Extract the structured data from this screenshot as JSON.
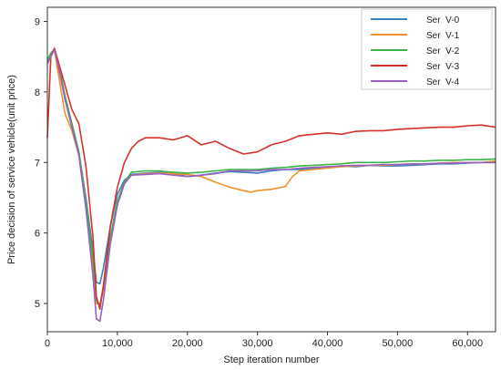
{
  "chart_data": {
    "type": "line",
    "title": "",
    "xlabel": "Step iteration number",
    "ylabel": "Price decision of service vehicle(unit price)",
    "xlim": [
      0,
      64000
    ],
    "ylim": [
      4.6,
      9.2
    ],
    "xticks": [
      0,
      10000,
      20000,
      30000,
      40000,
      50000,
      60000
    ],
    "xtick_labels": [
      "0",
      "10,000",
      "20,000",
      "30,000",
      "40,000",
      "50,000",
      "60,000"
    ],
    "yticks": [
      5,
      6,
      7,
      8,
      9
    ],
    "ytick_labels": [
      "5",
      "6",
      "7",
      "8",
      "9"
    ],
    "grid": false,
    "legend_position": "top-right",
    "series": [
      {
        "name": "Ser  V-0",
        "color": "#3a7fbf",
        "x": [
          0,
          500,
          1000,
          1500,
          2500,
          3500,
          4500,
          5500,
          6500,
          7000,
          7500,
          8000,
          9000,
          10000,
          11000,
          12000,
          14000,
          16000,
          18000,
          20000,
          22000,
          24000,
          26000,
          28000,
          30000,
          32000,
          34000,
          36000,
          38000,
          40000,
          42000,
          44000,
          46000,
          48000,
          50000,
          52000,
          54000,
          56000,
          58000,
          60000,
          62000,
          64000
        ],
        "y": [
          8.45,
          8.5,
          8.6,
          8.4,
          7.95,
          7.55,
          7.15,
          6.5,
          5.75,
          5.3,
          5.28,
          5.5,
          6.1,
          6.55,
          6.75,
          6.83,
          6.85,
          6.86,
          6.84,
          6.8,
          6.82,
          6.85,
          6.87,
          6.86,
          6.85,
          6.88,
          6.9,
          6.9,
          6.92,
          6.93,
          6.95,
          6.94,
          6.96,
          6.95,
          6.95,
          6.96,
          6.97,
          6.98,
          6.98,
          6.99,
          7.0,
          7.0
        ]
      },
      {
        "name": "Ser  V-1",
        "color": "#f0932a",
        "x": [
          0,
          500,
          1000,
          1500,
          2500,
          3500,
          4500,
          5500,
          6500,
          7000,
          7500,
          8000,
          9000,
          10000,
          11000,
          12000,
          14000,
          16000,
          18000,
          20000,
          22000,
          24000,
          26000,
          28000,
          29000,
          30000,
          32000,
          34000,
          35000,
          36000,
          38000,
          40000,
          42000,
          44000,
          46000,
          48000,
          50000,
          52000,
          54000,
          56000,
          58000,
          60000,
          62000,
          64000
        ],
        "y": [
          8.45,
          8.55,
          8.6,
          8.3,
          7.7,
          7.45,
          7.1,
          6.4,
          5.5,
          5.0,
          4.98,
          5.2,
          5.9,
          6.4,
          6.7,
          6.82,
          6.84,
          6.85,
          6.84,
          6.83,
          6.8,
          6.72,
          6.65,
          6.6,
          6.58,
          6.6,
          6.62,
          6.66,
          6.8,
          6.88,
          6.9,
          6.92,
          6.94,
          6.95,
          6.96,
          6.96,
          6.97,
          6.98,
          6.98,
          6.99,
          7.0,
          7.0,
          7.0,
          7.02
        ]
      },
      {
        "name": "Ser  V-2",
        "color": "#3cb34a",
        "x": [
          0,
          500,
          1000,
          1500,
          2500,
          3500,
          4500,
          5500,
          6500,
          7000,
          7500,
          8000,
          9000,
          10000,
          11000,
          12000,
          14000,
          16000,
          18000,
          20000,
          22000,
          24000,
          26000,
          28000,
          30000,
          32000,
          34000,
          36000,
          38000,
          40000,
          42000,
          44000,
          46000,
          48000,
          50000,
          52000,
          54000,
          56000,
          58000,
          60000,
          62000,
          64000
        ],
        "y": [
          8.45,
          8.55,
          8.6,
          8.45,
          7.95,
          7.55,
          7.15,
          6.45,
          5.65,
          5.05,
          4.98,
          5.25,
          5.95,
          6.45,
          6.72,
          6.86,
          6.88,
          6.88,
          6.86,
          6.85,
          6.86,
          6.88,
          6.9,
          6.9,
          6.9,
          6.92,
          6.93,
          6.95,
          6.96,
          6.97,
          6.98,
          7.0,
          7.0,
          7.0,
          7.01,
          7.02,
          7.02,
          7.03,
          7.03,
          7.04,
          7.04,
          7.05
        ]
      },
      {
        "name": "Ser  V-3",
        "color": "#d6312b",
        "x": [
          0,
          500,
          1000,
          1500,
          2500,
          3500,
          4500,
          5500,
          6500,
          7000,
          7500,
          8000,
          9000,
          10000,
          11000,
          12000,
          13000,
          14000,
          16000,
          18000,
          20000,
          22000,
          24000,
          26000,
          28000,
          30000,
          32000,
          34000,
          36000,
          38000,
          40000,
          42000,
          44000,
          46000,
          48000,
          50000,
          52000,
          54000,
          56000,
          58000,
          60000,
          62000,
          64000
        ],
        "y": [
          7.35,
          8.5,
          8.62,
          8.45,
          8.1,
          7.75,
          7.55,
          6.95,
          5.95,
          5.1,
          4.92,
          5.25,
          6.1,
          6.65,
          7.0,
          7.2,
          7.3,
          7.35,
          7.35,
          7.32,
          7.38,
          7.25,
          7.3,
          7.2,
          7.12,
          7.15,
          7.25,
          7.3,
          7.38,
          7.4,
          7.42,
          7.4,
          7.44,
          7.45,
          7.45,
          7.47,
          7.48,
          7.49,
          7.5,
          7.5,
          7.52,
          7.53,
          7.5
        ]
      },
      {
        "name": "Ser  V-4",
        "color": "#9b5fc0",
        "x": [
          0,
          500,
          1000,
          1500,
          2500,
          3500,
          4500,
          5500,
          6500,
          7000,
          7500,
          8000,
          9000,
          10000,
          11000,
          12000,
          14000,
          16000,
          18000,
          20000,
          22000,
          24000,
          26000,
          28000,
          30000,
          32000,
          34000,
          36000,
          38000,
          40000,
          42000,
          44000,
          46000,
          48000,
          50000,
          52000,
          54000,
          56000,
          58000,
          60000,
          62000,
          64000
        ],
        "y": [
          8.4,
          8.5,
          8.6,
          8.4,
          7.9,
          7.5,
          7.1,
          6.35,
          5.4,
          4.78,
          4.75,
          5.05,
          5.85,
          6.4,
          6.7,
          6.82,
          6.83,
          6.84,
          6.82,
          6.8,
          6.82,
          6.84,
          6.88,
          6.88,
          6.88,
          6.9,
          6.9,
          6.92,
          6.93,
          6.94,
          6.95,
          6.96,
          6.96,
          6.97,
          6.97,
          6.98,
          6.98,
          6.99,
          6.99,
          7.0,
          7.0,
          7.0
        ]
      }
    ]
  }
}
